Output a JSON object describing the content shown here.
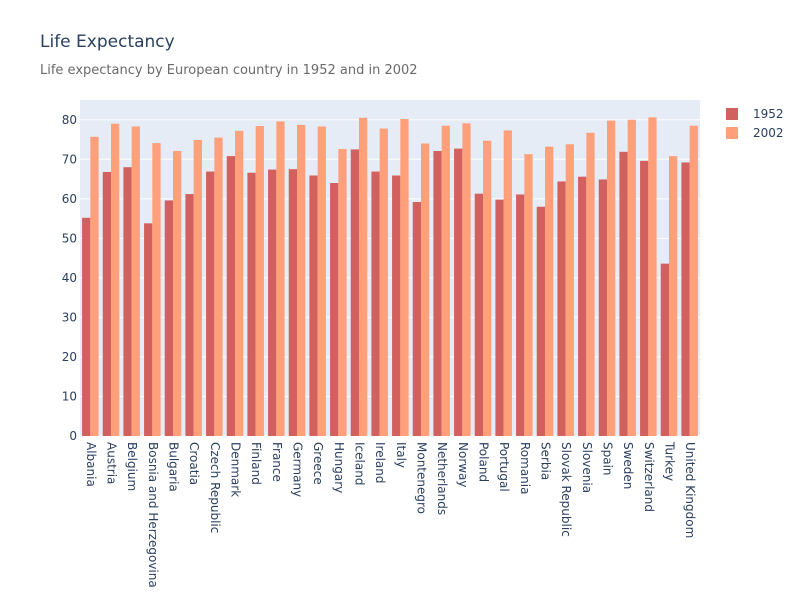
{
  "chart_data": {
    "type": "bar",
    "title": "Life Expectancy",
    "subtitle": "Life expectancy by European country in 1952 and in 2002",
    "xlabel": "",
    "ylabel": "",
    "ylim": [
      0,
      85
    ],
    "yticks": [
      0,
      10,
      20,
      30,
      40,
      50,
      60,
      70,
      80
    ],
    "grid": true,
    "legend_position": "top-right",
    "categories": [
      "Albania",
      "Austria",
      "Belgium",
      "Bosnia and Herzegovina",
      "Bulgaria",
      "Croatia",
      "Czech Republic",
      "Denmark",
      "Finland",
      "France",
      "Germany",
      "Greece",
      "Hungary",
      "Iceland",
      "Ireland",
      "Italy",
      "Montenegro",
      "Netherlands",
      "Norway",
      "Poland",
      "Portugal",
      "Romania",
      "Serbia",
      "Slovak Republic",
      "Slovenia",
      "Spain",
      "Sweden",
      "Switzerland",
      "Turkey",
      "United Kingdom"
    ],
    "series": [
      {
        "name": "1952",
        "color": "#d2605f",
        "values": [
          55.2,
          66.8,
          68.0,
          53.8,
          59.6,
          61.2,
          66.9,
          70.8,
          66.6,
          67.4,
          67.5,
          65.9,
          64.0,
          72.5,
          66.9,
          65.9,
          59.2,
          72.1,
          72.7,
          61.3,
          59.8,
          61.1,
          58.0,
          64.4,
          65.6,
          64.9,
          71.9,
          69.6,
          43.6,
          69.2
        ]
      },
      {
        "name": "2002",
        "color": "#ffa07a",
        "values": [
          75.7,
          79.0,
          78.3,
          74.1,
          72.1,
          74.9,
          75.5,
          77.2,
          78.4,
          79.6,
          78.7,
          78.3,
          72.6,
          80.5,
          77.8,
          80.2,
          74.0,
          78.5,
          79.1,
          74.7,
          77.3,
          71.3,
          73.2,
          73.8,
          76.7,
          79.8,
          80.0,
          80.6,
          70.8,
          78.5
        ]
      }
    ]
  },
  "colors": {
    "plot_bg": "#e5ecf6",
    "grid": "#ffffff",
    "axis_text": "#2a3f5f"
  }
}
